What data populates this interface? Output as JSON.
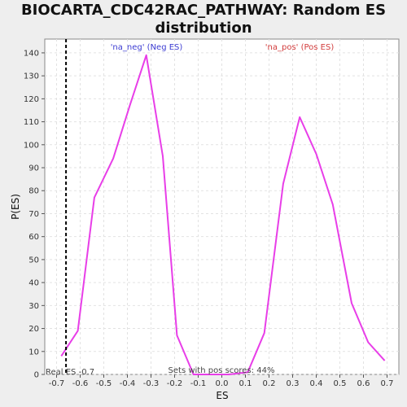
{
  "chart_data": {
    "type": "line",
    "title_line1": "BIOCARTA_CDC42RAC_PATHWAY: Random ES",
    "title_line2": "distribution",
    "xlabel": "ES",
    "ylabel": "P(ES)",
    "xlim": [
      -0.75,
      0.75
    ],
    "ylim": [
      0,
      146
    ],
    "xticks": [
      -0.7,
      -0.6,
      -0.5,
      -0.4,
      -0.3,
      -0.2,
      -0.1,
      0.0,
      0.1,
      0.2,
      0.3,
      0.4,
      0.5,
      0.6,
      0.7
    ],
    "xtick_labels": [
      "-0.7",
      "-0.6",
      "-0.5",
      "-0.4",
      "-0.3",
      "-0.2",
      "-0.1",
      "0.0",
      "0.1",
      "0.2",
      "0.3",
      "0.4",
      "0.5",
      "0.6",
      "0.7"
    ],
    "yticks": [
      0,
      10,
      20,
      30,
      40,
      50,
      60,
      70,
      80,
      90,
      100,
      110,
      120,
      130,
      140
    ],
    "grid": true,
    "series": [
      {
        "color": "#e83ee8",
        "x": [
          -0.68,
          -0.61,
          -0.54,
          -0.46,
          -0.39,
          -0.32,
          -0.25,
          -0.19,
          -0.12,
          -0.05,
          0.03,
          0.11,
          0.18,
          0.26,
          0.33,
          0.4,
          0.47,
          0.55,
          0.62,
          0.69
        ],
        "y": [
          8,
          19,
          77,
          94,
          117,
          139,
          95,
          17,
          0,
          0,
          0,
          1,
          18,
          83,
          112,
          96,
          74,
          31,
          14,
          6
        ]
      }
    ],
    "real_es": -0.66,
    "annotations": {
      "neg_label": "'na_neg' (Neg ES)",
      "pos_label": "'na_pos' (Pos ES)",
      "real_es_label": "Real ES -0.7",
      "pos_scores_label": "Sets with pos scores: 44%"
    },
    "colors": {
      "neg_label": "#3c3cd2",
      "pos_label": "#d23c3c",
      "real_es_line": "#000000",
      "grid": "#e2e2e2"
    }
  }
}
